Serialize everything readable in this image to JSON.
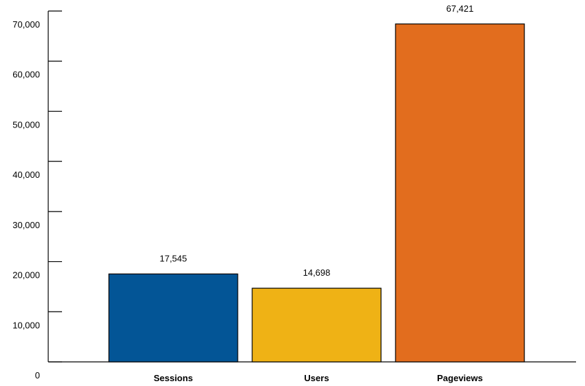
{
  "chart_data": {
    "type": "bar",
    "title": "",
    "xlabel": "",
    "ylabel": "",
    "categories": [
      "Sessions",
      "Users",
      "Pageviews"
    ],
    "values": [
      17545,
      14698,
      67421
    ],
    "value_labels": [
      "17,545",
      "14,698",
      "67,421"
    ],
    "colors": [
      "#035596",
      "#EFB215",
      "#E26D1E"
    ],
    "ylim": [
      0,
      70000
    ],
    "yticks": [
      0,
      10000,
      20000,
      30000,
      40000,
      50000,
      60000,
      70000
    ],
    "ytick_labels": [
      "0",
      "10,000",
      "20,000",
      "30,000",
      "40,000",
      "50,000",
      "60,000",
      "70,000"
    ],
    "grid": false,
    "legend": "none"
  }
}
